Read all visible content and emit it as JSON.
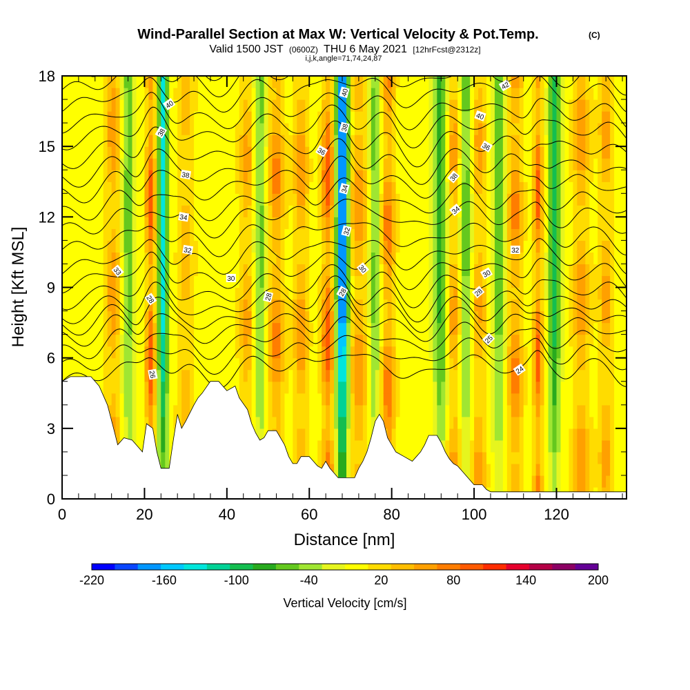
{
  "chart_data": {
    "type": "heatmap",
    "title": "Wind-Parallel Section at Max W: Vertical Velocity & Pot.Temp.",
    "title_mark": "(C)",
    "subtitle_prefix": "Valid 1500 JST",
    "subtitle_zulu": "(0600Z)",
    "subtitle_date": "THU 6 May 2021",
    "subtitle_fcst": "[12hrFcst@2312z]",
    "subtitle2": "i,j,k,angle=71,74,24,87",
    "xlabel": "Distance [nm]",
    "ylabel": "Height [Kft MSL]",
    "xlim": [
      0,
      137
    ],
    "ylim": [
      0,
      18
    ],
    "x_ticks": [
      0,
      20,
      40,
      60,
      80,
      100,
      120
    ],
    "x_tick_labels": [
      "0",
      "20",
      "40",
      "60",
      "80",
      "100",
      "120"
    ],
    "y_ticks": [
      0,
      3,
      6,
      9,
      12,
      15,
      18
    ],
    "y_tick_labels": [
      "0",
      "3",
      "6",
      "9",
      "12",
      "15",
      "18"
    ],
    "colorbar": {
      "label": "Vertical Velocity [cm/s]",
      "min": -220,
      "max": 200,
      "step": 20,
      "tick_values": [
        -220,
        -160,
        -100,
        -40,
        20,
        80,
        140,
        200
      ],
      "tick_labels": [
        "-220",
        "-160",
        "-100",
        "-40",
        "20",
        "80",
        "140",
        "200"
      ],
      "colors": [
        "#0000ff",
        "#0a46ff",
        "#0096ff",
        "#00c8ff",
        "#00e6dc",
        "#00d296",
        "#14be50",
        "#28aa1e",
        "#64c81e",
        "#a0e632",
        "#e6f51e",
        "#ffff00",
        "#ffdc00",
        "#ffbe00",
        "#ffa000",
        "#ff7d00",
        "#ff5a00",
        "#ff2d00",
        "#e6002d",
        "#b40046",
        "#8c0064",
        "#640096"
      ]
    },
    "updraft_columns": [
      {
        "x": 12.5,
        "w": 2.0,
        "value": 70
      },
      {
        "x": 21.5,
        "w": 1.2,
        "value": 110
      },
      {
        "x": 30,
        "w": 2.0,
        "value": 50
      },
      {
        "x": 45,
        "w": 2.0,
        "value": 60
      },
      {
        "x": 52,
        "w": 2.0,
        "value": 80
      },
      {
        "x": 58,
        "w": 1.8,
        "value": 70
      },
      {
        "x": 64.5,
        "w": 1.5,
        "value": 110
      },
      {
        "x": 72,
        "w": 2.0,
        "value": 75
      },
      {
        "x": 79,
        "w": 1.8,
        "value": 85
      },
      {
        "x": 95,
        "w": 2.0,
        "value": 70
      },
      {
        "x": 101,
        "w": 2.0,
        "value": 60
      },
      {
        "x": 110,
        "w": 1.8,
        "value": 80
      },
      {
        "x": 115.5,
        "w": 1.2,
        "value": 100
      },
      {
        "x": 126,
        "w": 2.0,
        "value": 70
      },
      {
        "x": 132,
        "w": 1.8,
        "value": 60
      }
    ],
    "downdraft_columns": [
      {
        "x": 16,
        "w": 1.8,
        "value": -60
      },
      {
        "x": 24.5,
        "w": 1.2,
        "value": -140
      },
      {
        "x": 48,
        "w": 1.6,
        "value": -60
      },
      {
        "x": 68,
        "w": 1.4,
        "value": -200
      },
      {
        "x": 76,
        "w": 1.5,
        "value": -60
      },
      {
        "x": 92,
        "w": 1.8,
        "value": -80
      },
      {
        "x": 98,
        "w": 1.6,
        "value": -70
      },
      {
        "x": 106,
        "w": 1.6,
        "value": -60
      },
      {
        "x": 119.5,
        "w": 1.4,
        "value": -100
      }
    ],
    "theta_contours": {
      "levels": [
        23,
        24,
        25,
        26,
        27,
        28,
        29,
        30,
        31,
        32,
        33,
        34,
        35,
        36,
        37,
        38,
        39,
        40,
        41,
        42
      ],
      "base_height_kft": [
        5.0,
        5.6,
        6.2,
        6.8,
        7.3,
        7.8,
        8.4,
        9.1,
        9.8,
        10.6,
        11.4,
        12.1,
        12.9,
        13.6,
        14.4,
        15.2,
        15.9,
        16.7,
        17.4,
        18.1
      ]
    },
    "contour_labels": [
      {
        "text": "40",
        "x": 26,
        "y": 16.8,
        "angle": 35
      },
      {
        "text": "38",
        "x": 24,
        "y": 15.6,
        "angle": 60
      },
      {
        "text": "38",
        "x": 30,
        "y": 13.8,
        "angle": -10
      },
      {
        "text": "34",
        "x": 29.5,
        "y": 12.0,
        "angle": -10
      },
      {
        "text": "32",
        "x": 30.5,
        "y": 10.6,
        "angle": -10
      },
      {
        "text": "33",
        "x": 13.5,
        "y": 9.7,
        "angle": -50
      },
      {
        "text": "28",
        "x": 21.5,
        "y": 8.5,
        "angle": -55
      },
      {
        "text": "26",
        "x": 22,
        "y": 5.3,
        "angle": -80
      },
      {
        "text": "30",
        "x": 41,
        "y": 9.4,
        "angle": 0
      },
      {
        "text": "28",
        "x": 50,
        "y": 8.6,
        "angle": 75
      },
      {
        "text": "36",
        "x": 63,
        "y": 14.8,
        "angle": -30
      },
      {
        "text": "40",
        "x": 68.5,
        "y": 17.3,
        "angle": 75
      },
      {
        "text": "38",
        "x": 68.5,
        "y": 15.8,
        "angle": 75
      },
      {
        "text": "34",
        "x": 68.5,
        "y": 13.2,
        "angle": 75
      },
      {
        "text": "32",
        "x": 69,
        "y": 11.4,
        "angle": 75
      },
      {
        "text": "30",
        "x": 73,
        "y": 9.8,
        "angle": -50
      },
      {
        "text": "28",
        "x": 68,
        "y": 8.8,
        "angle": 60
      },
      {
        "text": "42",
        "x": 107.5,
        "y": 17.6,
        "angle": 30
      },
      {
        "text": "40",
        "x": 101.5,
        "y": 16.3,
        "angle": -20
      },
      {
        "text": "36",
        "x": 103,
        "y": 15.0,
        "angle": -30
      },
      {
        "text": "38",
        "x": 95,
        "y": 13.7,
        "angle": 50
      },
      {
        "text": "34",
        "x": 95.5,
        "y": 12.3,
        "angle": 40
      },
      {
        "text": "32",
        "x": 110,
        "y": 10.6,
        "angle": 0
      },
      {
        "text": "30",
        "x": 103,
        "y": 9.6,
        "angle": 30
      },
      {
        "text": "28",
        "x": 101,
        "y": 8.8,
        "angle": 40
      },
      {
        "text": "25",
        "x": 103.5,
        "y": 6.8,
        "angle": 45
      },
      {
        "text": "24",
        "x": 111,
        "y": 5.5,
        "angle": 35
      }
    ],
    "terrain_kft": [
      [
        0,
        5.0
      ],
      [
        2,
        5.2
      ],
      [
        7,
        5.2
      ],
      [
        9,
        4.8
      ],
      [
        11,
        4.0
      ],
      [
        12.5,
        3.0
      ],
      [
        13.5,
        2.3
      ],
      [
        15,
        2.6
      ],
      [
        17,
        2.5
      ],
      [
        18.5,
        2.2
      ],
      [
        19.5,
        2.0
      ],
      [
        20.5,
        3.2
      ],
      [
        22,
        3.0
      ],
      [
        23,
        2.0
      ],
      [
        24,
        1.3
      ],
      [
        26,
        1.3
      ],
      [
        27,
        2.5
      ],
      [
        28,
        3.6
      ],
      [
        29,
        3.0
      ],
      [
        30,
        3.3
      ],
      [
        32,
        4.0
      ],
      [
        33,
        4.3
      ],
      [
        34,
        4.5
      ],
      [
        36,
        5.0
      ],
      [
        38,
        5.0
      ],
      [
        39,
        4.8
      ],
      [
        40,
        4.6
      ],
      [
        42,
        4.8
      ],
      [
        43,
        4.3
      ],
      [
        45,
        3.8
      ],
      [
        46,
        3.2
      ],
      [
        47,
        2.8
      ],
      [
        48,
        2.5
      ],
      [
        49,
        2.6
      ],
      [
        50,
        2.9
      ],
      [
        52,
        2.9
      ],
      [
        53,
        2.6
      ],
      [
        54,
        2.3
      ],
      [
        55,
        1.8
      ],
      [
        56,
        1.5
      ],
      [
        57,
        1.5
      ],
      [
        58,
        1.8
      ],
      [
        60,
        1.8
      ],
      [
        61,
        1.6
      ],
      [
        62,
        1.4
      ],
      [
        63,
        1.3
      ],
      [
        64,
        1.6
      ],
      [
        65,
        1.3
      ],
      [
        66,
        1.1
      ],
      [
        67,
        0.9
      ],
      [
        71,
        0.9
      ],
      [
        72,
        1.3
      ],
      [
        73,
        1.6
      ],
      [
        74,
        2.0
      ],
      [
        75,
        2.6
      ],
      [
        76,
        3.3
      ],
      [
        77,
        3.6
      ],
      [
        78,
        3.3
      ],
      [
        79,
        2.6
      ],
      [
        81,
        2.0
      ],
      [
        83,
        1.8
      ],
      [
        85,
        1.6
      ],
      [
        86,
        1.8
      ],
      [
        87,
        2.0
      ],
      [
        88,
        2.3
      ],
      [
        89,
        2.7
      ],
      [
        91,
        2.7
      ],
      [
        92,
        2.4
      ],
      [
        93,
        2.0
      ],
      [
        94,
        1.7
      ],
      [
        95,
        1.5
      ],
      [
        96,
        1.4
      ],
      [
        97,
        1.2
      ],
      [
        98,
        1.0
      ],
      [
        99,
        0.8
      ],
      [
        100,
        0.6
      ],
      [
        102,
        0.6
      ],
      [
        103,
        0.4
      ],
      [
        104,
        0.3
      ],
      [
        137,
        0.3
      ]
    ]
  }
}
